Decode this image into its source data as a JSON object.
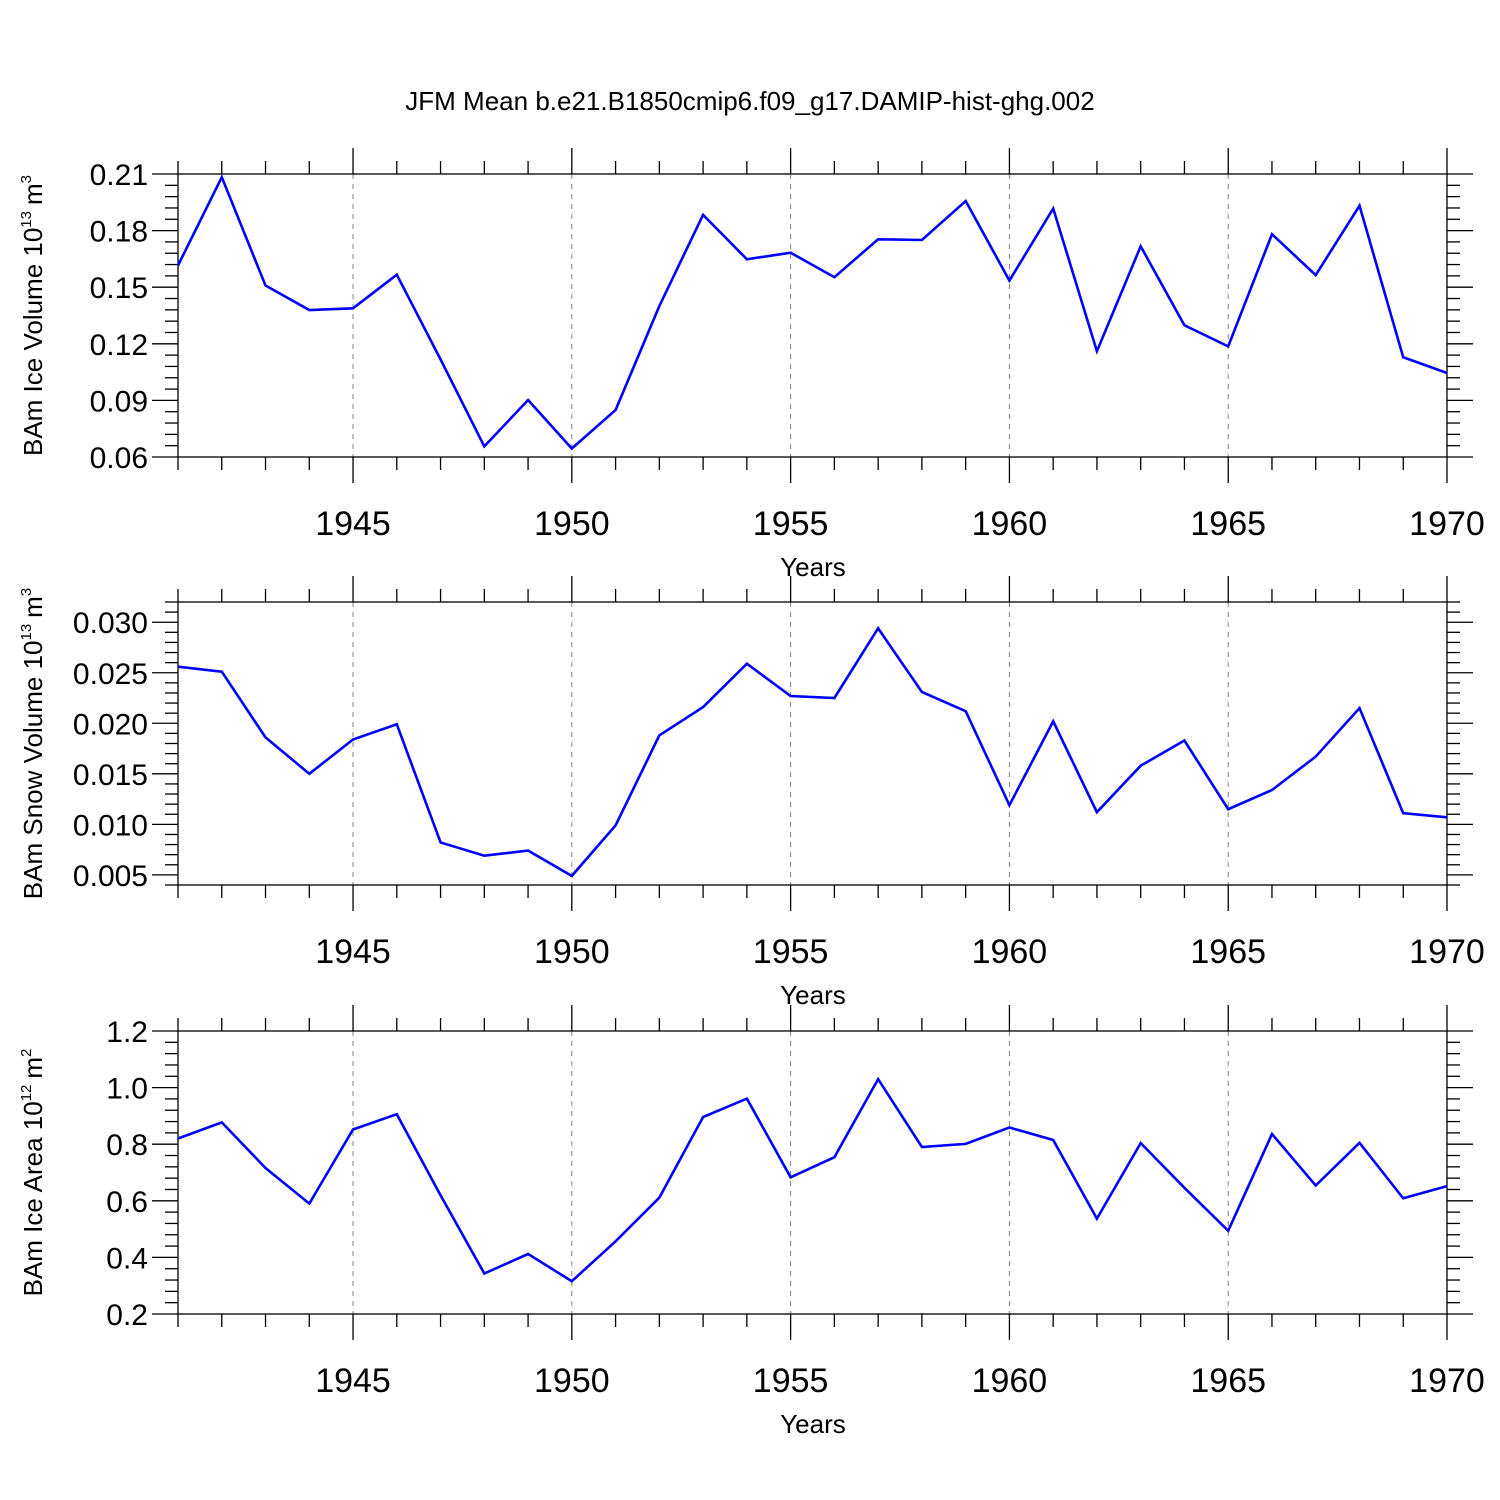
{
  "title": "JFM Mean b.e21.B1850cmip6.f09_g17.DAMIP-hist-ghg.002",
  "colors": {
    "line": "#0000ff",
    "axis": "#000000",
    "grid": "#808080"
  },
  "chart_data": [
    {
      "type": "line",
      "ylabel_main": "BAm Ice Volume 10",
      "ylabel_exp": "13",
      "ylabel_unit": "m",
      "ylabel_unit_exp": "3",
      "xlabel": "Years",
      "xlim": [
        1941,
        1970
      ],
      "ylim": [
        0.06,
        0.21
      ],
      "yticks": [
        0.06,
        0.09,
        0.12,
        0.15,
        0.18,
        0.21
      ],
      "ytick_labels": [
        "0.06",
        "0.09",
        "0.12",
        "0.15",
        "0.18",
        "0.21"
      ],
      "xticks": [
        1945,
        1950,
        1955,
        1960,
        1965,
        1970
      ],
      "xtick_labels": [
        "1945",
        "1950",
        "1955",
        "1960",
        "1965",
        "1970"
      ],
      "grid": "vertical dashed at major x ticks",
      "x": [
        1941,
        1942,
        1943,
        1944,
        1945,
        1946,
        1947,
        1948,
        1949,
        1950,
        1951,
        1952,
        1953,
        1954,
        1955,
        1956,
        1957,
        1958,
        1959,
        1960,
        1961,
        1962,
        1963,
        1964,
        1965,
        1966,
        1967,
        1968,
        1969,
        1970
      ],
      "values": [
        0.1615,
        0.2083,
        0.1509,
        0.1379,
        0.1388,
        0.1566,
        0.1117,
        0.0656,
        0.0902,
        0.0645,
        0.0849,
        0.14,
        0.1884,
        0.1648,
        0.1683,
        0.1553,
        0.1754,
        0.175,
        0.1957,
        0.1535,
        0.1917,
        0.1161,
        0.1717,
        0.1298,
        0.1186,
        0.1781,
        0.1564,
        0.1932,
        0.1129,
        0.1045
      ]
    },
    {
      "type": "line",
      "ylabel_main": "BAm Snow Volume 10",
      "ylabel_exp": "13",
      "ylabel_unit": "m",
      "ylabel_unit_exp": "3",
      "xlabel": "Years",
      "xlim": [
        1941,
        1970
      ],
      "ylim": [
        0.004,
        0.032
      ],
      "yticks": [
        0.005,
        0.01,
        0.015,
        0.02,
        0.025,
        0.03
      ],
      "ytick_labels": [
        "0.005",
        "0.010",
        "0.015",
        "0.020",
        "0.025",
        "0.030"
      ],
      "xticks": [
        1945,
        1950,
        1955,
        1960,
        1965,
        1970
      ],
      "xtick_labels": [
        "1945",
        "1950",
        "1955",
        "1960",
        "1965",
        "1970"
      ],
      "grid": "vertical dashed at major x ticks",
      "x": [
        1941,
        1942,
        1943,
        1944,
        1945,
        1946,
        1947,
        1948,
        1949,
        1950,
        1951,
        1952,
        1953,
        1954,
        1955,
        1956,
        1957,
        1958,
        1959,
        1960,
        1961,
        1962,
        1963,
        1964,
        1965,
        1966,
        1967,
        1968,
        1969,
        1970
      ],
      "values": [
        0.0256,
        0.0251,
        0.0186,
        0.015,
        0.0184,
        0.0199,
        0.0082,
        0.0069,
        0.0074,
        0.0049,
        0.0099,
        0.0188,
        0.0216,
        0.0259,
        0.0227,
        0.0225,
        0.0294,
        0.0231,
        0.0212,
        0.0119,
        0.0202,
        0.0112,
        0.0158,
        0.0183,
        0.0115,
        0.0134,
        0.0167,
        0.0215,
        0.0111,
        0.0107
      ]
    },
    {
      "type": "line",
      "ylabel_main": "BAm Ice Area 10",
      "ylabel_exp": "12",
      "ylabel_unit": "m",
      "ylabel_unit_exp": "2",
      "xlabel": "Years",
      "xlim": [
        1941,
        1970
      ],
      "ylim": [
        0.2,
        1.2
      ],
      "yticks": [
        0.2,
        0.4,
        0.6,
        0.8,
        1.0,
        1.2
      ],
      "ytick_labels": [
        "0.2",
        "0.4",
        "0.6",
        "0.8",
        "1.0",
        "1.2"
      ],
      "xticks": [
        1945,
        1950,
        1955,
        1960,
        1965,
        1970
      ],
      "xtick_labels": [
        "1945",
        "1950",
        "1955",
        "1960",
        "1965",
        "1970"
      ],
      "grid": "vertical dashed at major x ticks",
      "x": [
        1941,
        1942,
        1943,
        1944,
        1945,
        1946,
        1947,
        1948,
        1949,
        1950,
        1951,
        1952,
        1953,
        1954,
        1955,
        1956,
        1957,
        1958,
        1959,
        1960,
        1961,
        1962,
        1963,
        1964,
        1965,
        1966,
        1967,
        1968,
        1969,
        1970
      ],
      "values": [
        0.82,
        0.877,
        0.716,
        0.59,
        0.852,
        0.906,
        0.619,
        0.343,
        0.412,
        0.316,
        0.457,
        0.611,
        0.896,
        0.961,
        0.683,
        0.754,
        1.03,
        0.79,
        0.801,
        0.859,
        0.815,
        0.537,
        0.804,
        0.646,
        0.494,
        0.836,
        0.654,
        0.805,
        0.609,
        0.652
      ]
    }
  ]
}
